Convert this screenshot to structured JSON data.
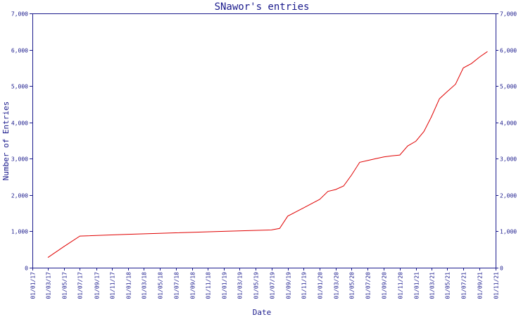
{
  "chart_data": {
    "type": "line",
    "title": "SNawor's entries",
    "xlabel": "Date",
    "ylabel": "Number of Entries",
    "ylim": [
      0,
      7000
    ],
    "xlim": [
      "2017-01-01",
      "2021-11-01"
    ],
    "grid": false,
    "y_ticks": [
      "0",
      "1,000",
      "2,000",
      "3,000",
      "4,000",
      "5,000",
      "6,000",
      "7,000"
    ],
    "y_tick_values": [
      0,
      1000,
      2000,
      3000,
      4000,
      5000,
      6000,
      7000
    ],
    "x_ticks": [
      "01/01/17",
      "01/03/17",
      "01/05/17",
      "01/07/17",
      "01/09/17",
      "01/11/17",
      "01/01/18",
      "01/03/18",
      "01/05/18",
      "01/07/18",
      "01/09/18",
      "01/11/18",
      "01/01/19",
      "01/03/19",
      "01/05/19",
      "01/07/19",
      "01/09/19",
      "01/11/19",
      "01/01/20",
      "01/03/20",
      "01/05/20",
      "01/07/20",
      "01/09/20",
      "01/11/20",
      "01/01/21",
      "01/03/21",
      "01/05/21",
      "01/07/21",
      "01/09/21",
      "01/11/21"
    ],
    "x_tick_values": [
      "2017-01-01",
      "2017-03-01",
      "2017-05-01",
      "2017-07-01",
      "2017-09-01",
      "2017-11-01",
      "2018-01-01",
      "2018-03-01",
      "2018-05-01",
      "2018-07-01",
      "2018-09-01",
      "2018-11-01",
      "2019-01-01",
      "2019-03-01",
      "2019-05-01",
      "2019-07-01",
      "2019-09-01",
      "2019-11-01",
      "2020-01-01",
      "2020-03-01",
      "2020-05-01",
      "2020-07-01",
      "2020-09-01",
      "2020-11-01",
      "2021-01-01",
      "2021-03-01",
      "2021-05-01",
      "2021-07-01",
      "2021-09-01",
      "2021-11-01"
    ],
    "colors": {
      "axis": "#1a1a8c",
      "line": "#e00000",
      "background": "#ffffff"
    },
    "series": [
      {
        "x": [
          "2017-03-01",
          "2017-05-01",
          "2017-07-01",
          "2018-01-01",
          "2018-07-01",
          "2019-01-01",
          "2019-07-01",
          "2019-08-01",
          "2019-09-01",
          "2019-11-01",
          "2020-01-01",
          "2020-02-01",
          "2020-03-01",
          "2020-04-01",
          "2020-05-01",
          "2020-06-01",
          "2020-07-01",
          "2020-08-01",
          "2020-09-01",
          "2020-10-01",
          "2020-11-01",
          "2020-12-01",
          "2021-01-01",
          "2021-02-01",
          "2021-03-01",
          "2021-04-01",
          "2021-05-01",
          "2021-06-01",
          "2021-07-01",
          "2021-08-01",
          "2021-09-01",
          "2021-10-01"
        ],
        "y": [
          280,
          580,
          870,
          920,
          960,
          1000,
          1040,
          1080,
          1420,
          1650,
          1880,
          2100,
          2150,
          2250,
          2550,
          2900,
          2950,
          3000,
          3050,
          3080,
          3100,
          3350,
          3480,
          3750,
          4150,
          4650,
          4850,
          5050,
          5500,
          5620,
          5800,
          5950
        ]
      }
    ]
  }
}
